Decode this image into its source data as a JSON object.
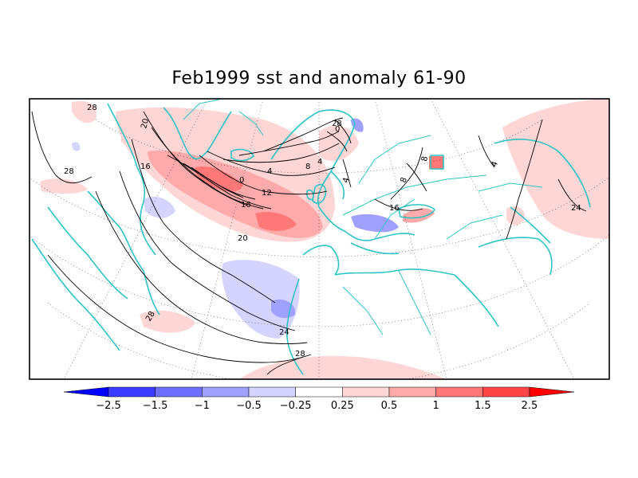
{
  "title": "Feb1999 sst and anomaly 61-90",
  "colorbar": {
    "colors": [
      "#0000ff",
      "#3c3cff",
      "#6e6eff",
      "#a0a0ff",
      "#d4d4ff",
      "#ffffff",
      "#ffd6d6",
      "#ffaaaa",
      "#ff7878",
      "#ff4646",
      "#ff0000"
    ],
    "labels": [
      "-2.5",
      "-1.5",
      "-1",
      "-0.5",
      "-0.25",
      "0.25",
      "0.5",
      "1",
      "1.5",
      "2.5"
    ]
  },
  "contour_labels": [
    "28",
    "20",
    "28",
    "0",
    "4",
    "8",
    "12",
    "16",
    "20",
    "24",
    "28",
    "28",
    "16",
    "8",
    "0",
    "4",
    "4",
    "8",
    "4",
    "24",
    "28",
    "16"
  ],
  "coast_color": "#2ec4c4"
}
